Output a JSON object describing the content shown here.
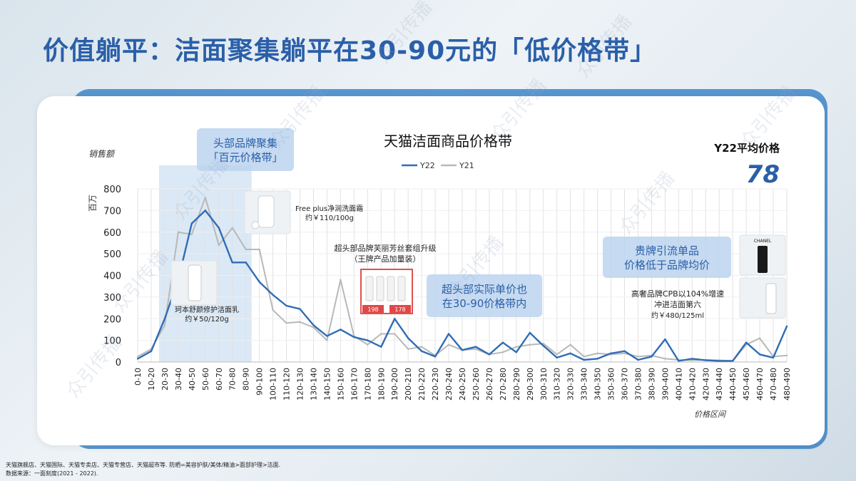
{
  "page": {
    "title": "价值躺平：洁面聚集躺平在30-90元的「低价格带」",
    "footnote_line1": "天猫旗舰店、天猫国际、天猫专卖店、天猫专营店、天猫超市等. 防晒=美容护肤/美体/精油>面部护理>洁面.",
    "footnote_line2": "数据来源：一面刻度(2021 - 2022)."
  },
  "watermark": "众引传播",
  "colors": {
    "y22": "#2f6db5",
    "y21": "#b8b8b8",
    "highlight": "#cfe0f2",
    "callout_bg": "#bcd4ee",
    "callout_text": "#2a5fa8"
  },
  "kpi": {
    "label": "Y22平均价格",
    "value": "78"
  },
  "callouts": {
    "top_brand_line1": "头部品牌聚集",
    "top_brand_line2": "「百元价格带」",
    "super_head_line1": "超头部实际单价也",
    "super_head_line2": "在30-90价格带内",
    "luxury_line1": "贵牌引流单品",
    "luxury_line2": "价格低于品牌均价"
  },
  "annotations": {
    "freeplus_line1": "Free plus净润洗面霜",
    "freeplus_line2": "约￥110/100g",
    "curel_line1": "珂本舒颜修护洁面乳",
    "curel_line2": "约￥50/120g",
    "fulifangsi_line1": "超头部品牌芙丽芳丝套组升级",
    "fulifangsi_line2": "（王牌产品加量装）",
    "cpb_line1": "高奢品牌CPB以104%增速",
    "cpb_line2": "冲进洁面第六",
    "cpb_line3": "约￥480/125ml"
  },
  "product_icons": {
    "freeplus": "freeplus-product-image",
    "curel": "curel-product-image",
    "fulifangsi": "fulifangsi-product-image",
    "chanel": "chanel-product-image",
    "cpb": "cpb-product-image"
  },
  "chanel_logo": "CHANEL",
  "promo_prices": [
    "198",
    "178"
  ],
  "chart_data": {
    "type": "line",
    "title": "天猫洁面商品价格带",
    "ylabel_top": "销售额",
    "yunit": "百万",
    "xlabel": "价格区间",
    "ylim": [
      0,
      800
    ],
    "yticks": [
      0,
      100,
      200,
      300,
      400,
      500,
      600,
      700,
      800
    ],
    "grid": true,
    "legend_position": "top",
    "highlight_range": [
      "20-30",
      "80-90"
    ],
    "categories": [
      "0-10",
      "10-20",
      "20-30",
      "30-40",
      "40-50",
      "50-60",
      "60-70",
      "70-80",
      "80-90",
      "90-100",
      "100-110",
      "110-120",
      "120-130",
      "130-140",
      "140-150",
      "150-160",
      "160-170",
      "170-180",
      "180-190",
      "190-200",
      "200-210",
      "210-220",
      "220-230",
      "230-240",
      "240-250",
      "250-260",
      "260-270",
      "270-280",
      "280-290",
      "290-300",
      "300-310",
      "310-320",
      "320-330",
      "330-340",
      "340-350",
      "350-360",
      "360-370",
      "370-380",
      "380-390",
      "390-400",
      "400-410",
      "410-420",
      "420-430",
      "430-440",
      "440-450",
      "450-460",
      "460-470",
      "470-480",
      "480-490"
    ],
    "series": [
      {
        "name": "Y22",
        "color": "#2f6db5",
        "values": [
          15,
          50,
          200,
          380,
          640,
          700,
          620,
          460,
          460,
          370,
          310,
          260,
          245,
          170,
          120,
          150,
          115,
          100,
          70,
          200,
          110,
          50,
          25,
          130,
          55,
          70,
          35,
          90,
          45,
          135,
          75,
          20,
          40,
          10,
          15,
          40,
          50,
          10,
          25,
          105,
          5,
          15,
          8,
          5,
          5,
          90,
          35,
          20,
          165
        ]
      },
      {
        "name": "Y21",
        "color": "#b8b8b8",
        "values": [
          25,
          60,
          170,
          600,
          590,
          760,
          540,
          620,
          520,
          520,
          240,
          180,
          185,
          160,
          100,
          380,
          120,
          80,
          130,
          130,
          60,
          70,
          30,
          80,
          55,
          60,
          35,
          45,
          70,
          80,
          85,
          35,
          80,
          25,
          40,
          35,
          40,
          25,
          30,
          15,
          10,
          8,
          10,
          8,
          5,
          80,
          110,
          25,
          30
        ]
      }
    ]
  }
}
